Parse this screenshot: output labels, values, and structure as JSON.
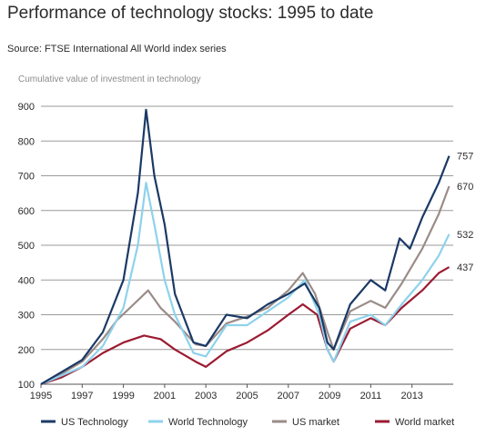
{
  "title": "Performance of technology stocks: 1995 to date",
  "source": "Source: FTSE International All World index series",
  "chart_data": {
    "type": "line",
    "ylabel": "Cumulative value of investment in technology",
    "xlim": [
      1995,
      2015
    ],
    "ylim": [
      100,
      900
    ],
    "yticks": [
      100,
      200,
      300,
      400,
      500,
      600,
      700,
      800,
      900
    ],
    "xticks": [
      "1995",
      "1997",
      "1999",
      "2001",
      "2003",
      "2005",
      "2007",
      "2009",
      "2011",
      "2013"
    ],
    "grid": "horizontal",
    "legend": "bottom",
    "series": [
      {
        "name": "US market",
        "color": "#9a8c88",
        "end_label": "670",
        "points": [
          [
            1995,
            100
          ],
          [
            1996,
            130
          ],
          [
            1997,
            165
          ],
          [
            1998,
            230
          ],
          [
            1998.7,
            285
          ],
          [
            1999.5,
            330
          ],
          [
            2000.2,
            370
          ],
          [
            2000.8,
            320
          ],
          [
            2001.5,
            280
          ],
          [
            2002.5,
            215
          ],
          [
            2003,
            210
          ],
          [
            2004,
            275
          ],
          [
            2005,
            295
          ],
          [
            2006,
            320
          ],
          [
            2007,
            370
          ],
          [
            2007.7,
            420
          ],
          [
            2008.3,
            360
          ],
          [
            2008.9,
            250
          ],
          [
            2009.2,
            200
          ],
          [
            2010,
            310
          ],
          [
            2011,
            340
          ],
          [
            2011.7,
            320
          ],
          [
            2012.5,
            390
          ],
          [
            2013.5,
            490
          ],
          [
            2014.3,
            590
          ],
          [
            2014.8,
            670
          ]
        ]
      },
      {
        "name": "World market",
        "color": "#9b1b32",
        "end_label": "437",
        "points": [
          [
            1995,
            100
          ],
          [
            1996,
            120
          ],
          [
            1997,
            150
          ],
          [
            1998,
            190
          ],
          [
            1999,
            220
          ],
          [
            2000,
            240
          ],
          [
            2000.8,
            230
          ],
          [
            2001.5,
            200
          ],
          [
            2002.5,
            165
          ],
          [
            2003,
            150
          ],
          [
            2004,
            195
          ],
          [
            2005,
            220
          ],
          [
            2006,
            255
          ],
          [
            2007,
            300
          ],
          [
            2007.7,
            330
          ],
          [
            2008.4,
            300
          ],
          [
            2008.9,
            200
          ],
          [
            2009.2,
            165
          ],
          [
            2010,
            260
          ],
          [
            2011,
            290
          ],
          [
            2011.7,
            270
          ],
          [
            2012.5,
            320
          ],
          [
            2013.5,
            370
          ],
          [
            2014.3,
            420
          ],
          [
            2014.8,
            437
          ]
        ]
      },
      {
        "name": "World Technology",
        "color": "#8ed2ec",
        "end_label": "532",
        "points": [
          [
            1995,
            100
          ],
          [
            1996,
            125
          ],
          [
            1997,
            150
          ],
          [
            1998,
            210
          ],
          [
            1999,
            320
          ],
          [
            1999.7,
            500
          ],
          [
            2000.1,
            680
          ],
          [
            2000.5,
            560
          ],
          [
            2001,
            400
          ],
          [
            2001.5,
            300
          ],
          [
            2002.4,
            190
          ],
          [
            2003,
            180
          ],
          [
            2004,
            270
          ],
          [
            2005,
            270
          ],
          [
            2006,
            310
          ],
          [
            2007,
            350
          ],
          [
            2007.8,
            400
          ],
          [
            2008.5,
            300
          ],
          [
            2008.9,
            200
          ],
          [
            2009.2,
            165
          ],
          [
            2010,
            280
          ],
          [
            2011,
            300
          ],
          [
            2011.7,
            270
          ],
          [
            2012.5,
            330
          ],
          [
            2013.5,
            400
          ],
          [
            2014.3,
            470
          ],
          [
            2014.8,
            532
          ]
        ]
      },
      {
        "name": "US Technology",
        "color": "#1b3966",
        "end_label": "757",
        "points": [
          [
            1995,
            100
          ],
          [
            1996,
            135
          ],
          [
            1997,
            170
          ],
          [
            1998,
            250
          ],
          [
            1999,
            400
          ],
          [
            1999.7,
            650
          ],
          [
            2000.1,
            890
          ],
          [
            2000.5,
            700
          ],
          [
            2001,
            560
          ],
          [
            2001.5,
            360
          ],
          [
            2002.4,
            220
          ],
          [
            2003,
            210
          ],
          [
            2004,
            300
          ],
          [
            2005,
            290
          ],
          [
            2006,
            330
          ],
          [
            2007,
            360
          ],
          [
            2007.8,
            390
          ],
          [
            2008.5,
            320
          ],
          [
            2008.9,
            220
          ],
          [
            2009.2,
            200
          ],
          [
            2010,
            330
          ],
          [
            2011,
            400
          ],
          [
            2011.7,
            370
          ],
          [
            2012.4,
            520
          ],
          [
            2012.9,
            490
          ],
          [
            2013.5,
            580
          ],
          [
            2014.3,
            680
          ],
          [
            2014.8,
            757
          ]
        ]
      }
    ],
    "legend_order": [
      "US Technology",
      "World Technology",
      "US market",
      "World market"
    ]
  }
}
